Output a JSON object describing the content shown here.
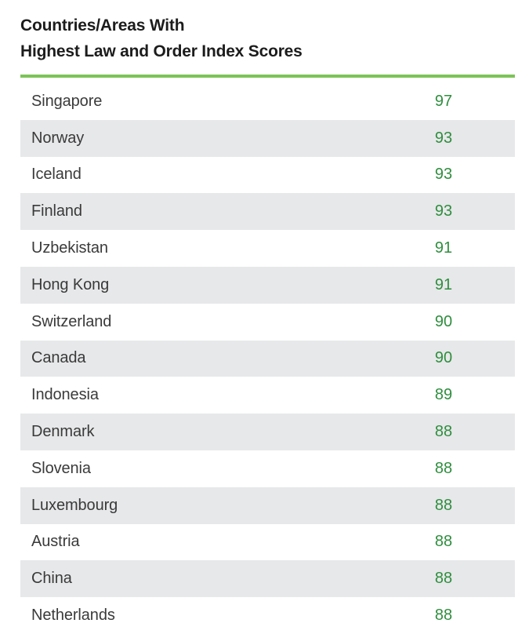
{
  "title_line1": "Countries/Areas With",
  "title_line2": "Highest Law and Order Index Scores",
  "colors": {
    "accent_rule": "#7cc358",
    "score_text": "#2f8e3e",
    "row_shade": "#e7e8ea"
  },
  "chart_data": {
    "type": "table",
    "title": "Countries/Areas With Highest Law and Order Index Scores",
    "columns": [
      "",
      ""
    ],
    "rows": [
      {
        "country": "Singapore",
        "score": 97
      },
      {
        "country": "Norway",
        "score": 93
      },
      {
        "country": "Iceland",
        "score": 93
      },
      {
        "country": "Finland",
        "score": 93
      },
      {
        "country": "Uzbekistan",
        "score": 91
      },
      {
        "country": "Hong Kong",
        "score": 91
      },
      {
        "country": "Switzerland",
        "score": 90
      },
      {
        "country": "Canada",
        "score": 90
      },
      {
        "country": "Indonesia",
        "score": 89
      },
      {
        "country": "Denmark",
        "score": 88
      },
      {
        "country": "Slovenia",
        "score": 88
      },
      {
        "country": "Luxembourg",
        "score": 88
      },
      {
        "country": "Austria",
        "score": 88
      },
      {
        "country": "China",
        "score": 88
      },
      {
        "country": "Netherlands",
        "score": 88
      }
    ]
  }
}
